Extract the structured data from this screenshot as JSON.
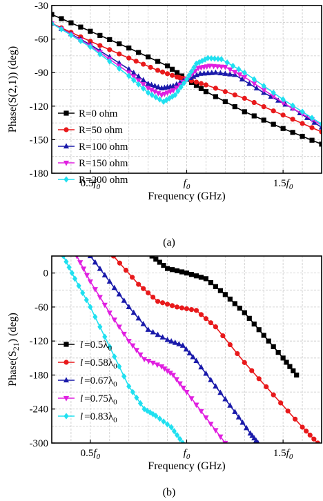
{
  "figure": {
    "labels": [
      "(a)",
      "(b)"
    ]
  },
  "chart_data": [
    {
      "type": "line",
      "panel": "(a)",
      "xlabel": "Frequency (GHz)",
      "ylabel": "Phase(S(2,1)) (deg)",
      "xlim": [
        0.3,
        1.7
      ],
      "ylim": [
        -180,
        -30
      ],
      "yticks": [
        -30,
        -60,
        -90,
        -120,
        -150,
        -180
      ],
      "xticks": [
        {
          "value": 0.5,
          "main": "0.5f",
          "sub": "0"
        },
        {
          "value": 1.0,
          "main": "f",
          "sub": "0"
        },
        {
          "value": 1.5,
          "main": "1.5f",
          "sub": "0"
        }
      ],
      "grid": true,
      "legend_position": "bottom-left",
      "series": [
        {
          "name": "R=0 ohm",
          "color": "#000000",
          "marker": "square",
          "points": [
            [
              0.3,
              -38
            ],
            [
              0.5,
              -53
            ],
            [
              0.7,
              -68
            ],
            [
              0.9,
              -84
            ],
            [
              1.0,
              -96
            ],
            [
              1.1,
              -107
            ],
            [
              1.3,
              -125
            ],
            [
              1.5,
              -140
            ],
            [
              1.7,
              -154
            ]
          ]
        },
        {
          "name": "R=50 ohm",
          "color": "#e8191b",
          "marker": "circle",
          "points": [
            [
              0.3,
              -46
            ],
            [
              0.5,
              -62
            ],
            [
              0.7,
              -77
            ],
            [
              0.85,
              -88
            ],
            [
              0.95,
              -94
            ],
            [
              1.0,
              -96
            ],
            [
              1.1,
              -101
            ],
            [
              1.3,
              -113
            ],
            [
              1.5,
              -128
            ],
            [
              1.7,
              -143
            ]
          ]
        },
        {
          "name": "R=100 ohm",
          "color": "#1a1aaa",
          "marker": "triangle-up",
          "points": [
            [
              0.3,
              -46
            ],
            [
              0.5,
              -65
            ],
            [
              0.7,
              -87
            ],
            [
              0.8,
              -100
            ],
            [
              0.87,
              -104
            ],
            [
              0.93,
              -102
            ],
            [
              1.0,
              -96
            ],
            [
              1.07,
              -91
            ],
            [
              1.15,
              -90
            ],
            [
              1.25,
              -92
            ],
            [
              1.4,
              -108
            ],
            [
              1.55,
              -122
            ],
            [
              1.7,
              -139
            ]
          ]
        },
        {
          "name": "R=150 ohm",
          "color": "#e020e0",
          "marker": "triangle-down",
          "points": [
            [
              0.3,
              -46
            ],
            [
              0.5,
              -66
            ],
            [
              0.7,
              -90
            ],
            [
              0.8,
              -104
            ],
            [
              0.87,
              -110
            ],
            [
              0.93,
              -106
            ],
            [
              1.0,
              -96
            ],
            [
              1.06,
              -86
            ],
            [
              1.12,
              -84
            ],
            [
              1.2,
              -85
            ],
            [
              1.3,
              -94
            ],
            [
              1.5,
              -117
            ],
            [
              1.7,
              -137
            ]
          ]
        },
        {
          "name": "R=200 ohm",
          "color": "#20e0f0",
          "marker": "diamond",
          "points": [
            [
              0.3,
              -46
            ],
            [
              0.5,
              -67
            ],
            [
              0.7,
              -93
            ],
            [
              0.8,
              -108
            ],
            [
              0.88,
              -116
            ],
            [
              0.94,
              -110
            ],
            [
              1.0,
              -96
            ],
            [
              1.05,
              -82
            ],
            [
              1.11,
              -77
            ],
            [
              1.18,
              -78
            ],
            [
              1.3,
              -90
            ],
            [
              1.5,
              -114
            ],
            [
              1.7,
              -136
            ]
          ]
        }
      ]
    },
    {
      "type": "line",
      "panel": "(b)",
      "xlabel": "Frequency (GHz)",
      "ylabel": "Phase(S",
      "ylabel_sub": "21",
      "ylabel_end": ") (deg)",
      "xlim": [
        0.3,
        1.7
      ],
      "ylim": [
        -300,
        30
      ],
      "yticks": [
        0,
        -60,
        -120,
        -180,
        -240,
        -300
      ],
      "xticks": [
        {
          "value": 0.5,
          "main": "0.5f",
          "sub": "0"
        },
        {
          "value": 1.0,
          "main": "f",
          "sub": "0"
        },
        {
          "value": 1.5,
          "main": "1.5f",
          "sub": "0"
        }
      ],
      "grid": true,
      "legend_position": "bottom-left",
      "series": [
        {
          "label": "l",
          "value": "=0.5λ",
          "sub": "0",
          "color": "#000000",
          "marker": "square",
          "points": [
            [
              0.82,
              30
            ],
            [
              0.9,
              8
            ],
            [
              1.0,
              0
            ],
            [
              1.1,
              -10
            ],
            [
              1.2,
              -38
            ],
            [
              1.3,
              -70
            ],
            [
              1.4,
              -110
            ],
            [
              1.5,
              -150
            ],
            [
              1.57,
              -180
            ]
          ]
        },
        {
          "label": "l",
          "value": "=0.58λ",
          "sub": "0",
          "color": "#e8191b",
          "marker": "circle",
          "points": [
            [
              0.62,
              30
            ],
            [
              0.75,
              -20
            ],
            [
              0.85,
              -50
            ],
            [
              0.95,
              -60
            ],
            [
              1.05,
              -66
            ],
            [
              1.15,
              -95
            ],
            [
              1.3,
              -158
            ],
            [
              1.45,
              -215
            ],
            [
              1.6,
              -272
            ],
            [
              1.68,
              -300
            ]
          ]
        },
        {
          "label": "l",
          "value": "=0.67λ",
          "sub": "0",
          "color": "#1a1aaa",
          "marker": "triangle-up",
          "points": [
            [
              0.5,
              30
            ],
            [
              0.6,
              -15
            ],
            [
              0.7,
              -60
            ],
            [
              0.8,
              -100
            ],
            [
              0.9,
              -118
            ],
            [
              0.98,
              -128
            ],
            [
              1.05,
              -155
            ],
            [
              1.15,
              -200
            ],
            [
              1.25,
              -245
            ],
            [
              1.33,
              -283
            ],
            [
              1.37,
              -300
            ]
          ]
        },
        {
          "label": "l",
          "value": "=0.75λ",
          "sub": "0",
          "color": "#e020e0",
          "marker": "triangle-down",
          "points": [
            [
              0.43,
              30
            ],
            [
              0.5,
              -15
            ],
            [
              0.6,
              -70
            ],
            [
              0.7,
              -120
            ],
            [
              0.78,
              -152
            ],
            [
              0.87,
              -165
            ],
            [
              0.93,
              -180
            ],
            [
              1.0,
              -210
            ],
            [
              1.1,
              -255
            ],
            [
              1.2,
              -300
            ]
          ]
        },
        {
          "label": "l",
          "value": "=0.83λ",
          "sub": "0",
          "color": "#20e0f0",
          "marker": "diamond",
          "points": [
            [
              0.36,
              30
            ],
            [
              0.42,
              -10
            ],
            [
              0.5,
              -60
            ],
            [
              0.6,
              -130
            ],
            [
              0.7,
              -200
            ],
            [
              0.78,
              -240
            ],
            [
              0.84,
              -252
            ],
            [
              0.92,
              -272
            ],
            [
              0.98,
              -300
            ]
          ]
        }
      ]
    }
  ]
}
